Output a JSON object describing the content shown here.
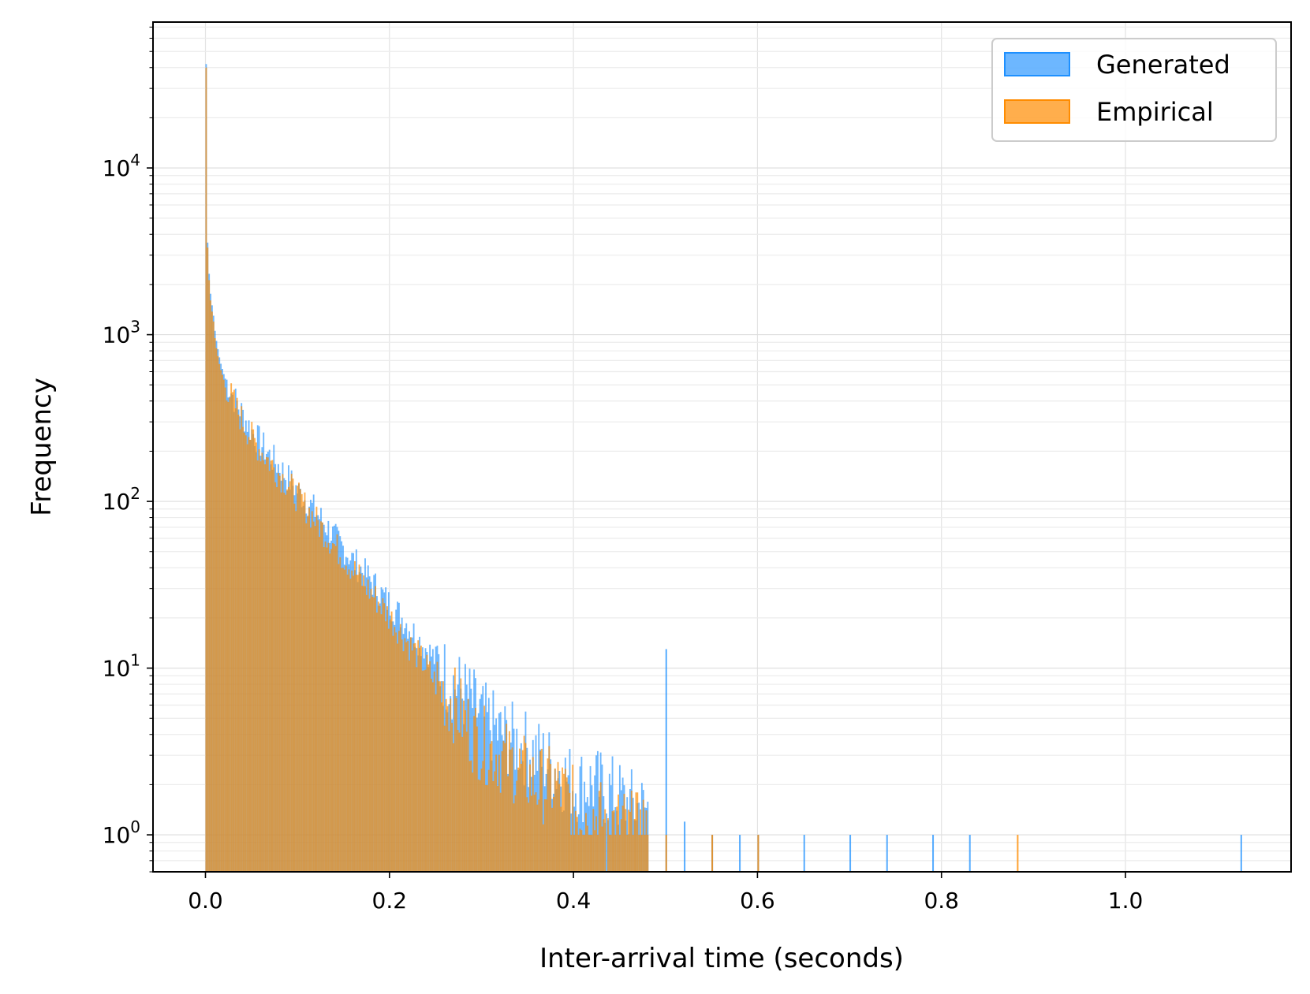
{
  "chart_data": {
    "type": "histogram",
    "xlabel": "Inter-arrival time (seconds)",
    "ylabel": "Frequency",
    "y_scale": "log",
    "xlim": [
      -0.057,
      1.18
    ],
    "ylim": [
      0.6,
      75000
    ],
    "x_ticks": [
      0.0,
      0.2,
      0.4,
      0.6,
      0.8,
      1.0
    ],
    "x_tick_labels": [
      "0.0",
      "0.2",
      "0.4",
      "0.6",
      "0.8",
      "1.0"
    ],
    "y_ticks": [
      1,
      10,
      100,
      1000,
      10000
    ],
    "y_tick_labels": [
      {
        "base": "10",
        "exp": "0"
      },
      {
        "base": "10",
        "exp": "1"
      },
      {
        "base": "10",
        "exp": "2"
      },
      {
        "base": "10",
        "exp": "3"
      },
      {
        "base": "10",
        "exp": "4"
      }
    ],
    "grid": true,
    "legend_position": "top-right",
    "legend": [
      "Generated",
      "Empirical"
    ],
    "colors": {
      "Generated": "#1e90ff",
      "Empirical": "#ff8c00"
    },
    "series": [
      {
        "name": "Generated",
        "points": [
          [
            0.0,
            42000
          ],
          [
            0.001,
            4200
          ],
          [
            0.002,
            3200
          ],
          [
            0.003,
            2400
          ],
          [
            0.005,
            1700
          ],
          [
            0.008,
            1300
          ],
          [
            0.01,
            1000
          ],
          [
            0.015,
            700
          ],
          [
            0.02,
            560
          ],
          [
            0.03,
            420
          ],
          [
            0.04,
            330
          ],
          [
            0.05,
            260
          ],
          [
            0.06,
            220
          ],
          [
            0.07,
            185
          ],
          [
            0.08,
            160
          ],
          [
            0.09,
            135
          ],
          [
            0.1,
            115
          ],
          [
            0.11,
            100
          ],
          [
            0.12,
            85
          ],
          [
            0.13,
            72
          ],
          [
            0.14,
            60
          ],
          [
            0.15,
            52
          ],
          [
            0.16,
            44
          ],
          [
            0.17,
            38
          ],
          [
            0.18,
            33
          ],
          [
            0.19,
            28
          ],
          [
            0.2,
            24
          ],
          [
            0.21,
            21
          ],
          [
            0.22,
            18
          ],
          [
            0.23,
            15
          ],
          [
            0.24,
            13
          ],
          [
            0.25,
            11
          ],
          [
            0.26,
            9
          ],
          [
            0.27,
            8
          ],
          [
            0.28,
            7
          ],
          [
            0.29,
            6
          ],
          [
            0.3,
            5
          ],
          [
            0.32,
            4
          ],
          [
            0.34,
            3.5
          ],
          [
            0.36,
            3
          ],
          [
            0.38,
            2.5
          ],
          [
            0.4,
            2
          ],
          [
            0.42,
            2
          ],
          [
            0.44,
            1.8
          ],
          [
            0.46,
            1.5
          ],
          [
            0.48,
            1.4
          ],
          [
            0.5,
            13
          ],
          [
            0.52,
            1.2
          ],
          [
            0.55,
            1
          ],
          [
            0.58,
            1
          ],
          [
            0.6,
            1
          ],
          [
            0.65,
            1
          ],
          [
            0.7,
            1
          ],
          [
            0.74,
            1
          ],
          [
            0.79,
            1
          ],
          [
            0.83,
            1
          ],
          [
            1.125,
            1
          ]
        ]
      },
      {
        "name": "Empirical",
        "points": [
          [
            0.0,
            40000
          ],
          [
            0.001,
            3900
          ],
          [
            0.002,
            3000
          ],
          [
            0.003,
            2200
          ],
          [
            0.005,
            1550
          ],
          [
            0.008,
            1200
          ],
          [
            0.01,
            900
          ],
          [
            0.015,
            640
          ],
          [
            0.02,
            520
          ],
          [
            0.03,
            390
          ],
          [
            0.04,
            300
          ],
          [
            0.05,
            240
          ],
          [
            0.06,
            200
          ],
          [
            0.07,
            170
          ],
          [
            0.08,
            145
          ],
          [
            0.09,
            125
          ],
          [
            0.1,
            105
          ],
          [
            0.11,
            90
          ],
          [
            0.12,
            76
          ],
          [
            0.13,
            64
          ],
          [
            0.14,
            54
          ],
          [
            0.15,
            46
          ],
          [
            0.16,
            39
          ],
          [
            0.17,
            33
          ],
          [
            0.18,
            28
          ],
          [
            0.19,
            24
          ],
          [
            0.2,
            20
          ],
          [
            0.21,
            17
          ],
          [
            0.22,
            14
          ],
          [
            0.23,
            12
          ],
          [
            0.24,
            10
          ],
          [
            0.25,
            8
          ],
          [
            0.26,
            7
          ],
          [
            0.27,
            6
          ],
          [
            0.28,
            5
          ],
          [
            0.29,
            4
          ],
          [
            0.3,
            3.5
          ],
          [
            0.32,
            3
          ],
          [
            0.34,
            2.5
          ],
          [
            0.36,
            2
          ],
          [
            0.38,
            2
          ],
          [
            0.4,
            1.5
          ],
          [
            0.42,
            1.3
          ],
          [
            0.44,
            1.2
          ],
          [
            0.46,
            1.1
          ],
          [
            0.48,
            1
          ],
          [
            0.5,
            1
          ],
          [
            0.55,
            1
          ],
          [
            0.6,
            1
          ],
          [
            0.882,
            1
          ]
        ]
      }
    ]
  }
}
